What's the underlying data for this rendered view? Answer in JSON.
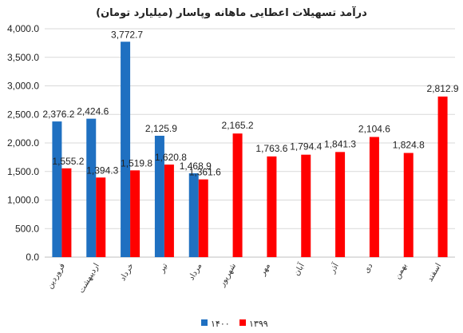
{
  "chart_data": {
    "type": "bar",
    "title": "درآمد تسهیلات اعطایی ماهانه وپاسار (میلیارد تومان)",
    "categories": [
      "فروردین",
      "اردیبهشت",
      "خرداد",
      "تیر",
      "مرداد",
      "شهریور",
      "مهر",
      "آبان",
      "آذر",
      "دی",
      "بهمن",
      "اسفند"
    ],
    "series": [
      {
        "name": "۱۴۰۰",
        "color": "#1f70c1",
        "values": [
          2376.2,
          2424.6,
          3772.7,
          2125.9,
          1468.9,
          null,
          null,
          null,
          null,
          null,
          null,
          null
        ],
        "labels": [
          "2,376.2",
          "2,424.6",
          "3,772.7",
          "2,125.9",
          "1,468.9",
          null,
          null,
          null,
          null,
          null,
          null,
          null
        ]
      },
      {
        "name": "۱۳۹۹",
        "color": "#ff0000",
        "values": [
          1555.2,
          1394.3,
          1519.8,
          1620.8,
          1361.6,
          2165.2,
          1763.6,
          1794.4,
          1841.3,
          2104.6,
          1824.8,
          2812.9
        ],
        "labels": [
          "1,555.2",
          "1,394.3",
          "1,519.8",
          "1,620.8",
          "1,361.6",
          "2,165.2",
          "1,763.6",
          "1,794.4",
          "1,841.3",
          "2,104.6",
          "1,824.8",
          "2,812.9"
        ]
      }
    ],
    "yticks": [
      "0.0",
      "500.0",
      "1,000.0",
      "1,500.0",
      "2,000.0",
      "2,500.0",
      "3,000.0",
      "3,500.0",
      "4,000.0"
    ],
    "ylim": [
      0,
      4000
    ],
    "grid": true,
    "legend_position": "bottom"
  }
}
